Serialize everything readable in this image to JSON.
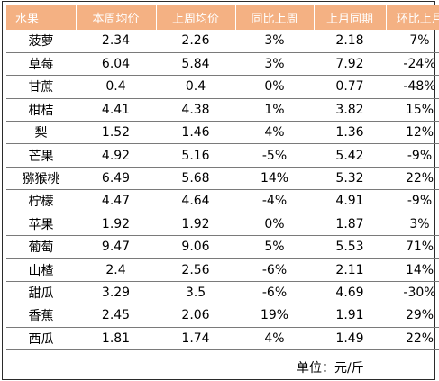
{
  "colors": {
    "header_background": "#f4b183",
    "header_text": "#ffffff",
    "row_divider": "#7a7a7a"
  },
  "table": {
    "headers": [
      "水果",
      "本周均价",
      "上周均价",
      "同比上周",
      "上月同期",
      "环比上月"
    ],
    "rows": [
      [
        "菠萝",
        "2.34",
        "2.26",
        "3%",
        "2.18",
        "7%"
      ],
      [
        "草莓",
        "6.04",
        "5.84",
        "3%",
        "7.92",
        "-24%"
      ],
      [
        "甘蔗",
        "0.4",
        "0.4",
        "0%",
        "0.77",
        "-48%"
      ],
      [
        "柑桔",
        "4.41",
        "4.38",
        "1%",
        "3.82",
        "15%"
      ],
      [
        "梨",
        "1.52",
        "1.46",
        "4%",
        "1.36",
        "12%"
      ],
      [
        "芒果",
        "4.92",
        "5.16",
        "-5%",
        "5.42",
        "-9%"
      ],
      [
        "猕猴桃",
        "6.49",
        "5.68",
        "14%",
        "5.32",
        "22%"
      ],
      [
        "柠檬",
        "4.47",
        "4.64",
        "-4%",
        "4.91",
        "-9%"
      ],
      [
        "苹果",
        "1.92",
        "1.92",
        "0%",
        "1.87",
        "3%"
      ],
      [
        "葡萄",
        "9.47",
        "9.06",
        "5%",
        "5.53",
        "71%"
      ],
      [
        "山楂",
        "2.4",
        "2.56",
        "-6%",
        "2.11",
        "14%"
      ],
      [
        "甜瓜",
        "3.29",
        "3.5",
        "-6%",
        "4.69",
        "-30%"
      ],
      [
        "香蕉",
        "2.45",
        "2.06",
        "19%",
        "1.91",
        "29%"
      ],
      [
        "西瓜",
        "1.81",
        "1.74",
        "4%",
        "1.49",
        "22%"
      ]
    ]
  },
  "footer": {
    "unit_note": "单位：元/斤"
  }
}
